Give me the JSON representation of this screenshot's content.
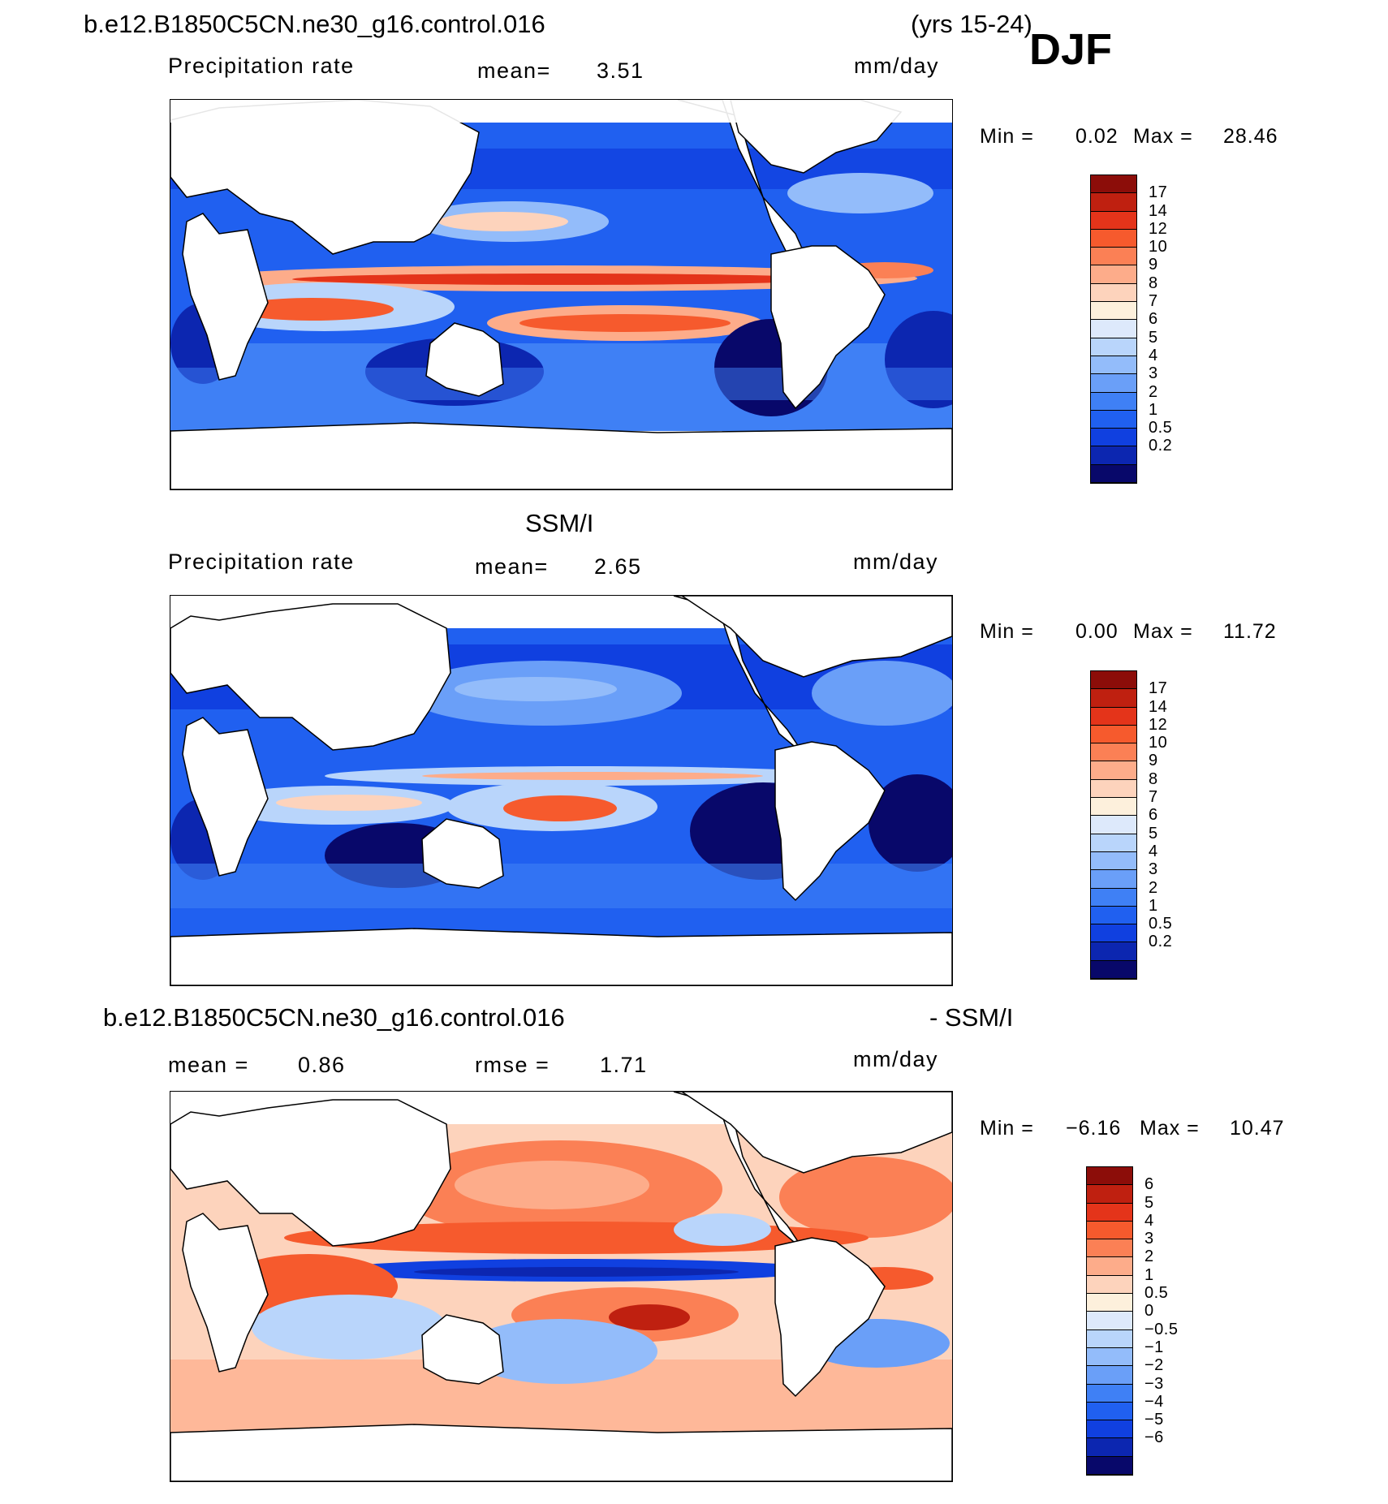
{
  "header": {
    "case_name": "b.e12.B1850C5CN.ne30_g16.control.016",
    "years": "(yrs 15-24)",
    "season": "DJF"
  },
  "colors": {
    "model_obs_scale": [
      "#08086a",
      "#0c26b0",
      "#1040e0",
      "#2060f0",
      "#3f80f5",
      "#6a9ff8",
      "#93bcfa",
      "#b9d5fb",
      "#dde9fb",
      "#fdf0dc",
      "#fdd3bc",
      "#fdac8a",
      "#fb8055",
      "#f65a2d",
      "#e4341a",
      "#bf2010",
      "#8c0d09"
    ],
    "diff_scale": [
      "#08086a",
      "#0c26b0",
      "#1040e0",
      "#2060f0",
      "#3f80f5",
      "#6a9ff8",
      "#93bcfa",
      "#b9d5fb",
      "#dde9fb",
      "#fdf0dc",
      "#fdd3bc",
      "#fdac8a",
      "#fb8055",
      "#f65a2d",
      "#e4341a",
      "#bf2010",
      "#8c0d09"
    ]
  },
  "panels": [
    {
      "id": "model",
      "title": "",
      "variable": "Precipitation rate",
      "stat_label": "mean=",
      "stat_value": "3.51",
      "units": "mm/day",
      "min_label": "Min =",
      "min_value": "0.02",
      "max_label": "Max =",
      "max_value": "28.46",
      "colorbar_ticks": [
        "17",
        "14",
        "12",
        "10",
        "9",
        "8",
        "7",
        "6",
        "5",
        "4",
        "3",
        "2",
        "1",
        "0.5",
        "0.2"
      ]
    },
    {
      "id": "obs",
      "title": "SSM/I",
      "variable": "Precipitation rate",
      "stat_label": "mean=",
      "stat_value": "2.65",
      "units": "mm/day",
      "min_label": "Min =",
      "min_value": "0.00",
      "max_label": "Max =",
      "max_value": "11.72",
      "colorbar_ticks": [
        "17",
        "14",
        "12",
        "10",
        "9",
        "8",
        "7",
        "6",
        "5",
        "4",
        "3",
        "2",
        "1",
        "0.5",
        "0.2"
      ]
    },
    {
      "id": "diff",
      "title_left": "b.e12.B1850C5CN.ne30_g16.control.016",
      "title_right": "- SSM/I",
      "stat_label": "mean =",
      "stat_value": "0.86",
      "stat2_label": "rmse =",
      "stat2_value": "1.71",
      "units": "mm/day",
      "min_label": "Min =",
      "min_value": "−6.16",
      "max_label": "Max =",
      "max_value": "10.47",
      "colorbar_ticks": [
        "6",
        "5",
        "4",
        "3",
        "2",
        "1",
        "0.5",
        "0",
        "−0.5",
        "−1",
        "−2",
        "−3",
        "−4",
        "−5",
        "−6"
      ]
    }
  ]
}
